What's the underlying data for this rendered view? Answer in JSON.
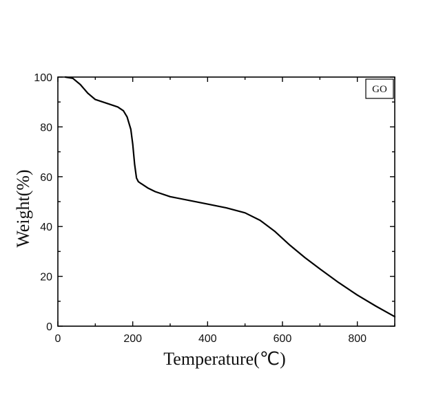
{
  "chart_data": {
    "type": "line",
    "xlabel": "Temperature(℃)",
    "ylabel": "Weight(%)",
    "xlim": [
      0,
      900
    ],
    "ylim": [
      0,
      100
    ],
    "xticks": [
      0,
      200,
      400,
      600,
      800
    ],
    "yticks": [
      0,
      20,
      40,
      60,
      80,
      100
    ],
    "grid": false,
    "legend_position": "top-right",
    "series": [
      {
        "name": "GO",
        "color": "#000000",
        "x": [
          20,
          40,
          60,
          80,
          100,
          120,
          140,
          160,
          175,
          185,
          195,
          200,
          205,
          210,
          215,
          220,
          225,
          240,
          260,
          300,
          350,
          400,
          450,
          500,
          540,
          580,
          620,
          660,
          700,
          750,
          800,
          850,
          900
        ],
        "y": [
          100,
          99.5,
          97,
          93.5,
          91,
          90,
          89,
          88,
          86.5,
          84,
          79,
          73,
          65,
          59.5,
          58,
          57.5,
          57,
          55.5,
          54,
          52,
          50.5,
          49,
          47.5,
          45.5,
          42.5,
          38,
          32.5,
          27.5,
          23,
          17.5,
          12.5,
          8,
          3.8
        ]
      }
    ]
  }
}
